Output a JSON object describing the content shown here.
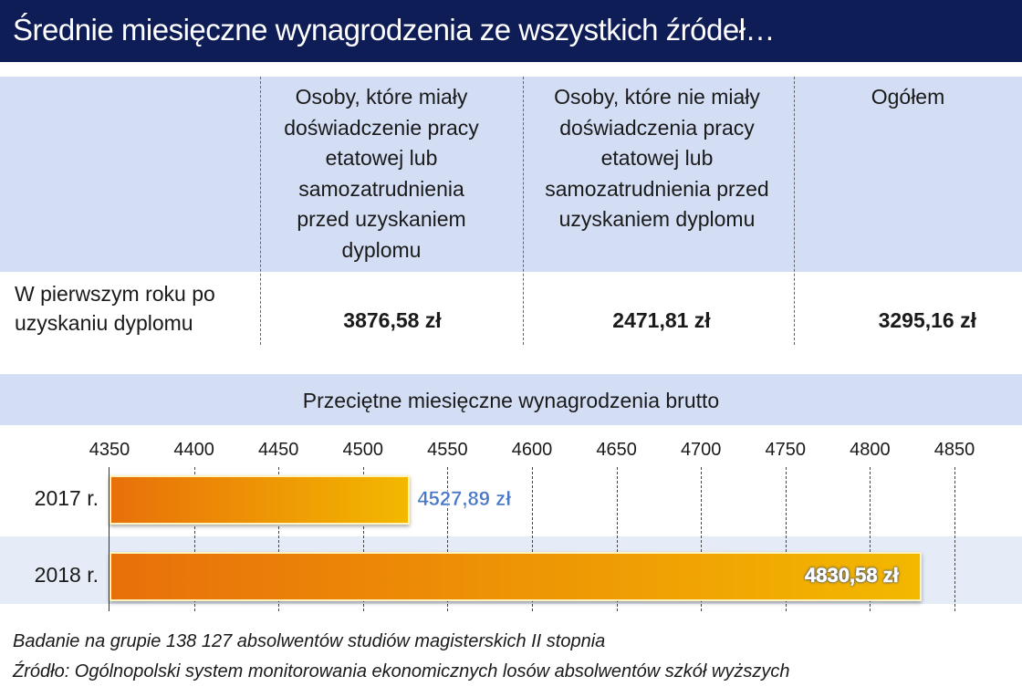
{
  "title": "Średnie miesięczne wynagrodzenia ze wszystkich źródeł…",
  "table": {
    "columns": [
      "Osoby, które miały doświadczenie pracy etatowej lub samozatrudnienia przed uzyskaniem dyplomu",
      "Osoby, które nie miały doświadczenia pracy etatowej lub samozatrudnienia przed uzyskaniem dyplomu",
      "Ogółem"
    ],
    "row_label": "W pierwszym roku po uzyskaniu dyplomu",
    "values": [
      "3876,58 zł",
      "2471,81 zł",
      "3295,16 zł"
    ]
  },
  "chart_data": {
    "type": "bar",
    "orientation": "horizontal",
    "title": "Przeciętne miesięczne wynagrodzenia brutto",
    "categories": [
      "2017 r.",
      "2018 r."
    ],
    "values": [
      4527.89,
      4830.58
    ],
    "labels": [
      "4527,89 zł",
      "4830,58 zł"
    ],
    "xlim": [
      4350,
      4850
    ],
    "ticks": [
      "4350",
      "4400",
      "4450",
      "4500",
      "4550",
      "4600",
      "4650",
      "4700",
      "4750",
      "4800",
      "4850"
    ],
    "grid": true
  },
  "footer": [
    "Badanie na grupie 138 127 absolwentów studiów magisterskich II stopnia",
    "Źródło: Ogólnopolski system monitorowania ekonomicznych losów absolwentów szkół wyższych"
  ]
}
